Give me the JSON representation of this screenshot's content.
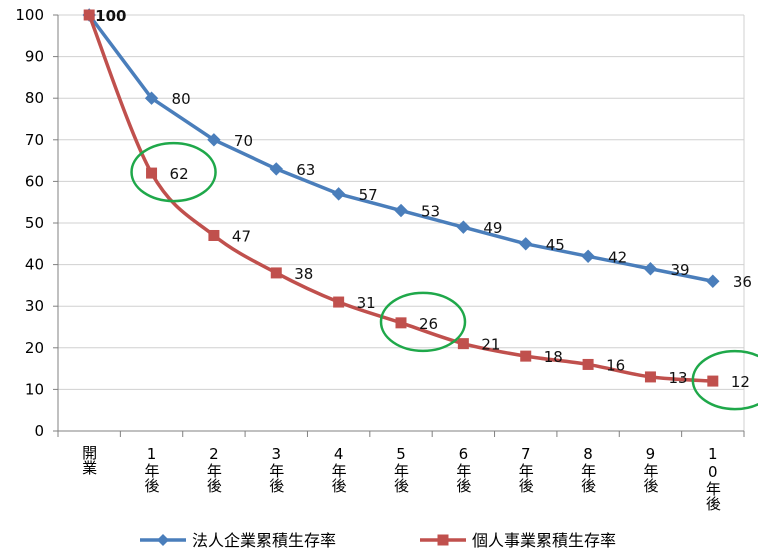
{
  "chart_data": {
    "type": "line",
    "categories": [
      "開業",
      "1年後",
      "2年後",
      "3年後",
      "4年後",
      "5年後",
      "6年後",
      "7年後",
      "8年後",
      "9年後",
      "10年後"
    ],
    "series": [
      {
        "name": "法人企業累積生存率",
        "color": "#4a7ebb",
        "marker": "diamond",
        "values": [
          100,
          80,
          70,
          63,
          57,
          53,
          49,
          45,
          42,
          39,
          36
        ]
      },
      {
        "name": "個人事業累積生存率",
        "color": "#c0504d",
        "marker": "square",
        "values": [
          100,
          62,
          47,
          38,
          31,
          26,
          21,
          18,
          16,
          13,
          12
        ]
      }
    ],
    "y_ticks": [
      0,
      10,
      20,
      30,
      40,
      50,
      60,
      70,
      80,
      90,
      100
    ],
    "ylim": [
      0,
      100
    ],
    "grid": true,
    "legend_position": "bottom",
    "highlight_circles": [
      {
        "category": "1年後",
        "value": 62
      },
      {
        "category": "5年後",
        "value": 26
      },
      {
        "category": "10年後",
        "value": 12
      }
    ],
    "highlight_color": "#1fa84a",
    "grid_color": "#d0d0d0",
    "axis_color": "#808080"
  }
}
